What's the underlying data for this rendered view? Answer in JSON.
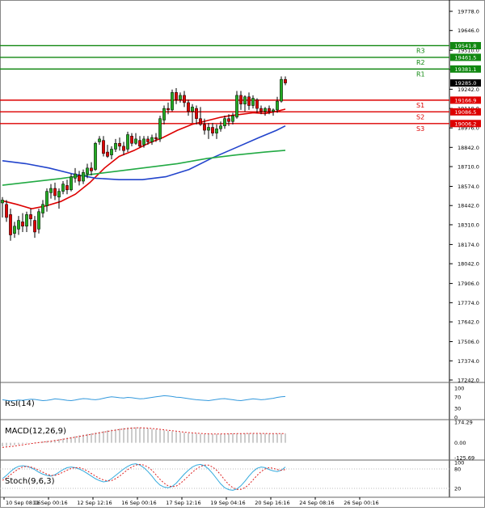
{
  "chart_data": [
    {
      "type": "candlestick",
      "title": "",
      "y_axis_ticks": [
        "19778.0",
        "19646.0",
        "19510.0",
        "19378.0",
        "19242.0",
        "19110.0",
        "18976.0",
        "18842.0",
        "18710.0",
        "18574.0",
        "18442.0",
        "18310.0",
        "18174.0",
        "18042.0",
        "17906.0",
        "17774.0",
        "17642.0",
        "17506.0",
        "17374.0",
        "17242.0"
      ],
      "ylim": [
        17242,
        19778
      ],
      "x_ticks": [
        "10 Sep 08:16",
        "11 Sep 00:16",
        "12 Sep 12:16",
        "16 Sep 00:16",
        "17 Sep 12:16",
        "19 Sep 04:16",
        "20 Sep 16:16",
        "24 Sep 08:16",
        "26 Sep 00:16"
      ],
      "x_tick_index": [
        0,
        11,
        22,
        33,
        44,
        55,
        66,
        77,
        88
      ],
      "candles": [
        {
          "o": 18460,
          "h": 18500,
          "l": 18360,
          "c": 18480
        },
        {
          "o": 18450,
          "h": 18480,
          "l": 18330,
          "c": 18360
        },
        {
          "o": 18380,
          "h": 18420,
          "l": 18200,
          "c": 18240
        },
        {
          "o": 18250,
          "h": 18330,
          "l": 18220,
          "c": 18300
        },
        {
          "o": 18280,
          "h": 18370,
          "l": 18240,
          "c": 18340
        },
        {
          "o": 18330,
          "h": 18390,
          "l": 18260,
          "c": 18300
        },
        {
          "o": 18300,
          "h": 18400,
          "l": 18260,
          "c": 18380
        },
        {
          "o": 18380,
          "h": 18420,
          "l": 18300,
          "c": 18350
        },
        {
          "o": 18340,
          "h": 18370,
          "l": 18220,
          "c": 18260
        },
        {
          "o": 18280,
          "h": 18420,
          "l": 18250,
          "c": 18400
        },
        {
          "o": 18390,
          "h": 18480,
          "l": 18360,
          "c": 18450
        },
        {
          "o": 18440,
          "h": 18560,
          "l": 18400,
          "c": 18540
        },
        {
          "o": 18530,
          "h": 18590,
          "l": 18490,
          "c": 18560
        },
        {
          "o": 18560,
          "h": 18600,
          "l": 18480,
          "c": 18510
        },
        {
          "o": 18500,
          "h": 18560,
          "l": 18420,
          "c": 18540
        },
        {
          "o": 18540,
          "h": 18610,
          "l": 18520,
          "c": 18590
        },
        {
          "o": 18580,
          "h": 18620,
          "l": 18520,
          "c": 18550
        },
        {
          "o": 18550,
          "h": 18660,
          "l": 18540,
          "c": 18640
        },
        {
          "o": 18630,
          "h": 18700,
          "l": 18600,
          "c": 18660
        },
        {
          "o": 18650,
          "h": 18680,
          "l": 18580,
          "c": 18610
        },
        {
          "o": 18610,
          "h": 18690,
          "l": 18590,
          "c": 18670
        },
        {
          "o": 18660,
          "h": 18730,
          "l": 18630,
          "c": 18700
        },
        {
          "o": 18700,
          "h": 18740,
          "l": 18650,
          "c": 18680
        },
        {
          "o": 18690,
          "h": 18880,
          "l": 18680,
          "c": 18870
        },
        {
          "o": 18880,
          "h": 18920,
          "l": 18860,
          "c": 18900
        },
        {
          "o": 18890,
          "h": 18920,
          "l": 18780,
          "c": 18800
        },
        {
          "o": 18810,
          "h": 18860,
          "l": 18770,
          "c": 18780
        },
        {
          "o": 18790,
          "h": 18850,
          "l": 18760,
          "c": 18830
        },
        {
          "o": 18830,
          "h": 18900,
          "l": 18810,
          "c": 18870
        },
        {
          "o": 18870,
          "h": 18910,
          "l": 18820,
          "c": 18850
        },
        {
          "o": 18850,
          "h": 18880,
          "l": 18790,
          "c": 18820
        },
        {
          "o": 18830,
          "h": 18950,
          "l": 18810,
          "c": 18930
        },
        {
          "o": 18920,
          "h": 18940,
          "l": 18850,
          "c": 18870
        },
        {
          "o": 18870,
          "h": 18940,
          "l": 18860,
          "c": 18900
        },
        {
          "o": 18890,
          "h": 18920,
          "l": 18840,
          "c": 18850
        },
        {
          "o": 18860,
          "h": 18920,
          "l": 18840,
          "c": 18900
        },
        {
          "o": 18900,
          "h": 18920,
          "l": 18860,
          "c": 18880
        },
        {
          "o": 18880,
          "h": 18930,
          "l": 18860,
          "c": 18910
        },
        {
          "o": 18910,
          "h": 18940,
          "l": 18880,
          "c": 18900
        },
        {
          "o": 18900,
          "h": 19060,
          "l": 18880,
          "c": 19040
        },
        {
          "o": 19030,
          "h": 19130,
          "l": 19000,
          "c": 19110
        },
        {
          "o": 19110,
          "h": 19150,
          "l": 19070,
          "c": 19100
        },
        {
          "o": 19100,
          "h": 19240,
          "l": 19090,
          "c": 19220
        },
        {
          "o": 19220,
          "h": 19250,
          "l": 19140,
          "c": 19170
        },
        {
          "o": 19170,
          "h": 19220,
          "l": 19150,
          "c": 19200
        },
        {
          "o": 19200,
          "h": 19230,
          "l": 19120,
          "c": 19150
        },
        {
          "o": 19150,
          "h": 19170,
          "l": 19060,
          "c": 19090
        },
        {
          "o": 19090,
          "h": 19140,
          "l": 19010,
          "c": 19120
        },
        {
          "o": 19110,
          "h": 19130,
          "l": 19000,
          "c": 19040
        },
        {
          "o": 19040,
          "h": 19120,
          "l": 18990,
          "c": 19000
        },
        {
          "o": 19000,
          "h": 19040,
          "l": 18930,
          "c": 18960
        },
        {
          "o": 18960,
          "h": 19010,
          "l": 18900,
          "c": 18980
        },
        {
          "o": 18980,
          "h": 19010,
          "l": 18920,
          "c": 18940
        },
        {
          "o": 18940,
          "h": 19000,
          "l": 18900,
          "c": 18970
        },
        {
          "o": 18970,
          "h": 19020,
          "l": 18950,
          "c": 18990
        },
        {
          "o": 18990,
          "h": 19060,
          "l": 18970,
          "c": 19040
        },
        {
          "o": 19040,
          "h": 19070,
          "l": 18990,
          "c": 19020
        },
        {
          "o": 19020,
          "h": 19080,
          "l": 19000,
          "c": 19060
        },
        {
          "o": 19050,
          "h": 19230,
          "l": 19040,
          "c": 19200
        },
        {
          "o": 19200,
          "h": 19230,
          "l": 19100,
          "c": 19140
        },
        {
          "o": 19140,
          "h": 19200,
          "l": 19090,
          "c": 19190
        },
        {
          "o": 19190,
          "h": 19220,
          "l": 19100,
          "c": 19130
        },
        {
          "o": 19130,
          "h": 19200,
          "l": 19110,
          "c": 19180
        },
        {
          "o": 19170,
          "h": 19180,
          "l": 19080,
          "c": 19110
        },
        {
          "o": 19110,
          "h": 19130,
          "l": 19070,
          "c": 19090
        },
        {
          "o": 19090,
          "h": 19120,
          "l": 19060,
          "c": 19110
        },
        {
          "o": 19110,
          "h": 19130,
          "l": 19070,
          "c": 19090
        },
        {
          "o": 19090,
          "h": 19110,
          "l": 19060,
          "c": 19100
        },
        {
          "o": 19100,
          "h": 19190,
          "l": 19080,
          "c": 19160
        },
        {
          "o": 19160,
          "h": 19330,
          "l": 19150,
          "c": 19310
        },
        {
          "o": 19310,
          "h": 19330,
          "l": 19270,
          "c": 19285
        }
      ],
      "moving_averages": [
        {
          "color": "#dd0000",
          "values": [
            [
              0,
              18475
            ],
            [
              5,
              18450
            ],
            [
              10,
              18420
            ],
            [
              15,
              18440
            ],
            [
              20,
              18470
            ],
            [
              25,
              18520
            ],
            [
              30,
              18600
            ],
            [
              35,
              18700
            ],
            [
              40,
              18780
            ],
            [
              45,
              18820
            ],
            [
              50,
              18870
            ],
            [
              55,
              18910
            ],
            [
              60,
              18960
            ],
            [
              65,
              19000
            ],
            [
              70,
              19025
            ],
            [
              75,
              19050
            ],
            [
              78,
              19060
            ],
            [
              82,
              19070
            ],
            [
              86,
              19080
            ],
            [
              90,
              19075
            ],
            [
              94,
              19090
            ],
            [
              97,
              19105
            ]
          ]
        },
        {
          "color": "#2244cc",
          "values": [
            [
              0,
              18750
            ],
            [
              8,
              18730
            ],
            [
              16,
              18700
            ],
            [
              24,
              18660
            ],
            [
              32,
              18630
            ],
            [
              40,
              18620
            ],
            [
              48,
              18620
            ],
            [
              56,
              18640
            ],
            [
              64,
              18690
            ],
            [
              72,
              18770
            ],
            [
              80,
              18840
            ],
            [
              88,
              18910
            ],
            [
              94,
              18960
            ],
            [
              97,
              18990
            ]
          ]
        },
        {
          "color": "#22aa44",
          "values": [
            [
              0,
              18582
            ],
            [
              10,
              18605
            ],
            [
              20,
              18628
            ],
            [
              30,
              18655
            ],
            [
              40,
              18680
            ],
            [
              50,
              18705
            ],
            [
              60,
              18730
            ],
            [
              70,
              18765
            ],
            [
              80,
              18790
            ],
            [
              90,
              18810
            ],
            [
              97,
              18822
            ]
          ]
        }
      ],
      "levels": [
        {
          "label": "R3",
          "value": 19541.8,
          "color": "#118811"
        },
        {
          "label": "R2",
          "value": 19461.5,
          "color": "#118811"
        },
        {
          "label": "R1",
          "value": 19381.1,
          "color": "#118811"
        },
        {
          "label": "S1",
          "value": 19166.9,
          "color": "#dd0000"
        },
        {
          "label": "S2",
          "value": 19086.5,
          "color": "#dd0000"
        },
        {
          "label": "S3",
          "value": 19006.2,
          "color": "#dd0000"
        }
      ],
      "current_price": "19285.0",
      "bull_color": "#22aa22",
      "bear_color": "#dd0000"
    },
    {
      "type": "line",
      "title": "RSI(14)",
      "y_axis_ticks": [
        "100",
        "70",
        "30",
        "0"
      ],
      "ylim": [
        0,
        100
      ],
      "values": [
        60,
        58,
        56,
        57,
        59,
        58,
        60,
        62,
        61,
        59,
        57,
        58,
        60,
        63,
        62,
        60,
        58,
        57,
        59,
        62,
        64,
        63,
        61,
        60,
        62,
        65,
        68,
        70,
        69,
        67,
        66,
        68,
        67,
        65,
        63,
        64,
        66,
        68,
        70,
        72,
        74,
        73,
        71,
        69,
        68,
        66,
        64,
        62,
        60,
        59,
        58,
        57,
        59,
        61,
        63,
        64,
        62,
        60,
        58,
        57,
        59,
        61,
        63,
        62,
        60,
        61,
        63,
        65,
        68,
        70,
        71
      ]
    },
    {
      "type": "bar",
      "title": "MACD(12,26,9)",
      "y_axis_ticks": [
        "174.29",
        "0.00",
        "-125.69"
      ],
      "ylim": [
        -125.69,
        174.29
      ],
      "values": [
        -30,
        -28,
        -24,
        -20,
        -15,
        -10,
        -6,
        -2,
        2,
        6,
        10,
        14,
        18,
        24,
        30,
        36,
        42,
        48,
        55,
        62,
        68,
        74,
        80,
        86,
        92,
        98,
        104,
        110,
        115,
        120,
        124,
        128,
        130,
        130,
        128,
        125,
        120,
        116,
        112,
        108,
        104,
        100,
        96,
        92,
        88,
        84,
        80,
        78,
        76,
        74,
        72,
        72,
        72,
        73,
        74,
        75,
        76,
        77,
        78,
        79,
        79,
        80,
        80,
        79,
        78,
        77,
        76,
        76,
        76,
        77,
        78
      ],
      "signal": [
        -40,
        -36,
        -32,
        -28,
        -23,
        -18,
        -13,
        -8,
        -3,
        1,
        5,
        9,
        13,
        18,
        23,
        29,
        35,
        41,
        47,
        53,
        59,
        65,
        71,
        77,
        83,
        89,
        95,
        101,
        106,
        111,
        116,
        120,
        123,
        125,
        126,
        125,
        123,
        120,
        117,
        113,
        109,
        105,
        101,
        97,
        93,
        89,
        86,
        83,
        80,
        78,
        76,
        75,
        74,
        74,
        74,
        75,
        75,
        76,
        77,
        77,
        78,
        78,
        79,
        79,
        78,
        78,
        77,
        77,
        77,
        77,
        77
      ]
    },
    {
      "type": "line",
      "title": "Stoch(9,6,3)",
      "y_axis_ticks": [
        "100",
        "80",
        "20"
      ],
      "ylim": [
        0,
        100
      ],
      "series": [
        {
          "color": "#33aadd",
          "values": [
            50,
            60,
            72,
            82,
            88,
            90,
            88,
            84,
            78,
            70,
            64,
            60,
            58,
            62,
            70,
            78,
            84,
            86,
            84,
            80,
            74,
            66,
            58,
            50,
            44,
            40,
            42,
            50,
            60,
            70,
            80,
            88,
            94,
            96,
            92,
            84,
            72,
            58,
            42,
            30,
            24,
            22,
            26,
            36,
            50,
            64,
            76,
            86,
            92,
            94,
            90,
            80,
            66,
            50,
            34,
            22,
            16,
            14,
            18,
            28,
            42,
            58,
            72,
            82,
            86,
            84,
            78,
            74,
            72,
            76,
            86
          ]
        },
        {
          "color": "#dd2222",
          "values": [
            45,
            52,
            62,
            72,
            80,
            86,
            88,
            86,
            82,
            76,
            70,
            64,
            60,
            60,
            64,
            70,
            76,
            82,
            84,
            84,
            80,
            74,
            66,
            58,
            51,
            46,
            43,
            44,
            50,
            58,
            68,
            78,
            86,
            92,
            94,
            92,
            86,
            76,
            62,
            48,
            36,
            28,
            25,
            27,
            35,
            46,
            58,
            70,
            80,
            88,
            92,
            92,
            86,
            76,
            62,
            46,
            32,
            22,
            17,
            17,
            22,
            32,
            46,
            60,
            72,
            80,
            84,
            82,
            78,
            76,
            78
          ]
        }
      ]
    }
  ]
}
